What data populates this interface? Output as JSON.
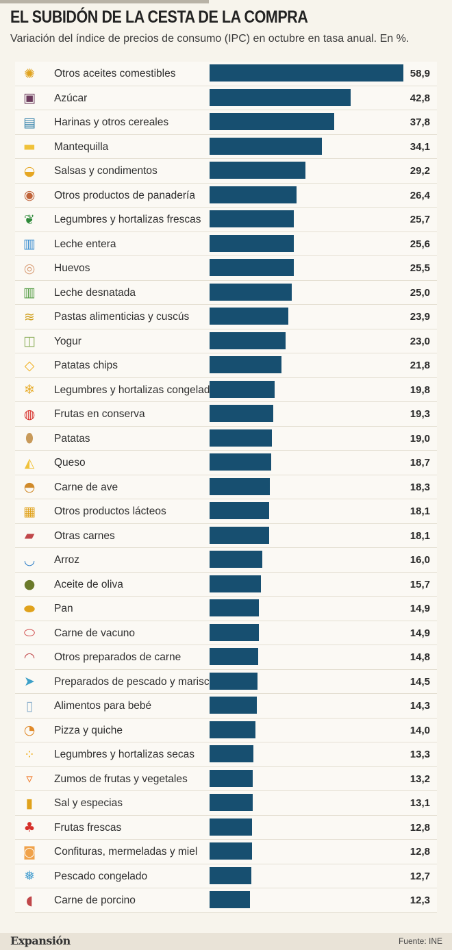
{
  "header": {
    "title": "EL SUBIDÓN DE LA CESTA DE LA COMPRA",
    "subtitle": "Variación del índice de precios de consumo (IPC) en octubre en tasa anual. En %."
  },
  "footer": {
    "brand": "Expansión",
    "source": "Fuente: INE"
  },
  "colors": {
    "bar": "#174f70",
    "background": "#f7f4ec"
  },
  "chart_data": {
    "type": "bar",
    "orientation": "horizontal",
    "xlim": [
      0,
      58.9
    ],
    "categories": [
      "Otros aceites comestibles",
      "Azúcar",
      "Harinas y otros cereales",
      "Mantequilla",
      "Salsas y condimentos",
      "Otros productos de panadería",
      "Legumbres y hortalizas frescas",
      "Leche entera",
      "Huevos",
      "Leche desnatada",
      "Pastas alimenticias y cuscús",
      "Yogur",
      "Patatas chips",
      "Legumbres y hortalizas congeladas",
      "Frutas en conserva",
      "Patatas",
      "Queso",
      "Carne de ave",
      "Otros productos lácteos",
      "Otras carnes",
      "Arroz",
      "Aceite de oliva",
      "Pan",
      "Carne de vacuno",
      "Otros preparados de carne",
      "Preparados de pescado y marisco",
      "Alimentos para bebé",
      "Pizza y quiche",
      "Legumbres y hortalizas secas",
      "Zumos de frutas y vegetales",
      "Sal y especias",
      "Frutas frescas",
      "Confituras, mermeladas y miel",
      "Pescado congelado",
      "Carne de porcino"
    ],
    "values": [
      58.9,
      42.8,
      37.8,
      34.1,
      29.2,
      26.4,
      25.7,
      25.6,
      25.5,
      25.0,
      23.9,
      23.0,
      21.8,
      19.8,
      19.3,
      19.0,
      18.7,
      18.3,
      18.1,
      18.1,
      16.0,
      15.7,
      14.9,
      14.9,
      14.8,
      14.5,
      14.3,
      14.0,
      13.3,
      13.2,
      13.1,
      12.8,
      12.8,
      12.7,
      12.3
    ],
    "value_labels": [
      "58,9",
      "42,8",
      "37,8",
      "34,1",
      "29,2",
      "26,4",
      "25,7",
      "25,6",
      "25,5",
      "25,0",
      "23,9",
      "23,0",
      "21,8",
      "19,8",
      "19,3",
      "19,0",
      "18,7",
      "18,3",
      "18,1",
      "18,1",
      "16,0",
      "15,7",
      "14,9",
      "14,9",
      "14,8",
      "14,5",
      "14,3",
      "14,0",
      "13,3",
      "13,2",
      "13,1",
      "12,8",
      "12,8",
      "12,7",
      "12,3"
    ],
    "icons": [
      {
        "name": "sunflower-icon",
        "glyph": "✺",
        "color": "#e0a21c"
      },
      {
        "name": "sugar-jar-icon",
        "glyph": "▣",
        "color": "#6b3a5c"
      },
      {
        "name": "flour-bag-icon",
        "glyph": "▤",
        "color": "#2f7fa8"
      },
      {
        "name": "butter-icon",
        "glyph": "▬",
        "color": "#f0c23a"
      },
      {
        "name": "sauce-bowl-icon",
        "glyph": "◒",
        "color": "#e5a622"
      },
      {
        "name": "donut-icon",
        "glyph": "◉",
        "color": "#c0643a"
      },
      {
        "name": "peapod-icon",
        "glyph": "❦",
        "color": "#2f8a3a"
      },
      {
        "name": "milk-carton-icon",
        "glyph": "▥",
        "color": "#3d8fd0"
      },
      {
        "name": "eggs-icon",
        "glyph": "◎",
        "color": "#d9a07a"
      },
      {
        "name": "skim-milk-icon",
        "glyph": "▥",
        "color": "#5aa04a"
      },
      {
        "name": "pasta-icon",
        "glyph": "≋",
        "color": "#d0a020"
      },
      {
        "name": "yogurt-icon",
        "glyph": "◫",
        "color": "#8cae5a"
      },
      {
        "name": "chips-bag-icon",
        "glyph": "◇",
        "color": "#f0b32a"
      },
      {
        "name": "frozen-vegetables-icon",
        "glyph": "❄",
        "color": "#e6a820"
      },
      {
        "name": "preserved-fruit-jar-icon",
        "glyph": "◍",
        "color": "#d6302a"
      },
      {
        "name": "potato-icon",
        "glyph": "⬮",
        "color": "#c89a5a"
      },
      {
        "name": "cheese-icon",
        "glyph": "◭",
        "color": "#f0c23a"
      },
      {
        "name": "roast-chicken-icon",
        "glyph": "◓",
        "color": "#d08a2a"
      },
      {
        "name": "dairy-products-icon",
        "glyph": "▦",
        "color": "#e0a21c"
      },
      {
        "name": "meat-cut-icon",
        "glyph": "▰",
        "color": "#c0474a"
      },
      {
        "name": "rice-bowl-icon",
        "glyph": "◡",
        "color": "#2f7fc8"
      },
      {
        "name": "olives-icon",
        "glyph": "●",
        "color": "#6b7a2a"
      },
      {
        "name": "baguette-icon",
        "glyph": "⬬",
        "color": "#e0a21c"
      },
      {
        "name": "steak-icon",
        "glyph": "⬭",
        "color": "#d04a4a"
      },
      {
        "name": "meat-pie-icon",
        "glyph": "◠",
        "color": "#c0474a"
      },
      {
        "name": "fish-icon",
        "glyph": "➤",
        "color": "#3ca0c8"
      },
      {
        "name": "baby-bottle-icon",
        "glyph": "▯",
        "color": "#8aaecb"
      },
      {
        "name": "pizza-icon",
        "glyph": "◔",
        "color": "#e08a2a"
      },
      {
        "name": "dried-legumes-icon",
        "glyph": "⁘",
        "color": "#f0b32a"
      },
      {
        "name": "juice-glass-icon",
        "glyph": "▿",
        "color": "#f07a2a"
      },
      {
        "name": "salt-shaker-icon",
        "glyph": "▮",
        "color": "#e0a21c"
      },
      {
        "name": "fresh-fruit-icon",
        "glyph": "♣",
        "color": "#d6302a"
      },
      {
        "name": "honey-jar-icon",
        "glyph": "◙",
        "color": "#f0a24a"
      },
      {
        "name": "frozen-fish-icon",
        "glyph": "❅",
        "color": "#4aa0d0"
      },
      {
        "name": "ham-icon",
        "glyph": "◖",
        "color": "#c0474a"
      }
    ]
  }
}
